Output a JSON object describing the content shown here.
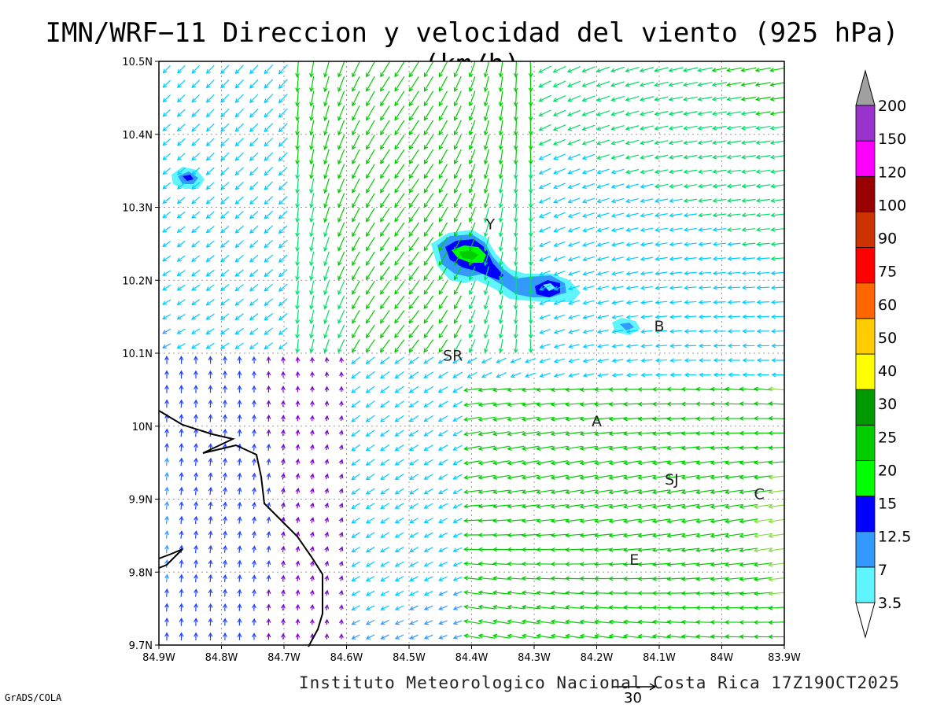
{
  "title": "IMN/WRF−11 Direccion y velocidad del viento (925 hPa)(km/h)",
  "footer": "Instituto Meteorologico Nacional Costa Rica 17Z19OCT2025",
  "credit": "GrADS/COLA",
  "reference_vector": {
    "label": "30",
    "speed_kmh": 30
  },
  "axes": {
    "lon_ticks": [
      "84.9W",
      "84.8W",
      "84.7W",
      "84.6W",
      "84.5W",
      "84.4W",
      "84.3W",
      "84.2W",
      "84.1W",
      "84W",
      "83.9W"
    ],
    "lat_ticks": [
      "10.5N",
      "10.4N",
      "10.3N",
      "10.2N",
      "10.1N",
      "10N",
      "9.9N",
      "9.8N",
      "9.7N"
    ],
    "lon_range": [
      -84.9,
      -83.9
    ],
    "lat_range": [
      9.7,
      10.5
    ],
    "grid": "dotted"
  },
  "places": [
    {
      "label": "Y",
      "lon": -84.37,
      "lat": 10.27
    },
    {
      "label": "SR",
      "lon": -84.43,
      "lat": 10.09
    },
    {
      "label": "B",
      "lon": -84.1,
      "lat": 10.13
    },
    {
      "label": "A",
      "lon": -84.2,
      "lat": 10.0
    },
    {
      "label": "SJ",
      "lon": -84.08,
      "lat": 9.92
    },
    {
      "label": "C",
      "lon": -83.94,
      "lat": 9.9
    },
    {
      "label": "E",
      "lon": -84.14,
      "lat": 9.81
    }
  ],
  "colorbar": {
    "levels": [
      "3.5",
      "7",
      "12.5",
      "15",
      "20",
      "25",
      "30",
      "40",
      "50",
      "60",
      "75",
      "90",
      "100",
      "120",
      "150",
      "200"
    ],
    "colors": [
      "#5ff5ff",
      "#3399ff",
      "#0000ff",
      "#00ff00",
      "#00cc00",
      "#009900",
      "#ffff00",
      "#ffcc00",
      "#ff6600",
      "#ff0000",
      "#cc3300",
      "#990000",
      "#ff00ff",
      "#9933cc",
      "#f5f5f5",
      "#a0a0a0"
    ]
  },
  "speed_features": [
    {
      "lon": -84.42,
      "lat": 10.235,
      "category": "15-20"
    },
    {
      "lon": -84.29,
      "lat": 10.193,
      "category": "12.5-15"
    },
    {
      "lon": -84.86,
      "lat": 10.34,
      "category": "7-12.5"
    },
    {
      "lon": -84.15,
      "lat": 10.133,
      "category": "3.5-7"
    }
  ],
  "wind_field": "Wind arrows at 925 hPa on a regular grid, coloured by speed using the colorbar scale."
}
